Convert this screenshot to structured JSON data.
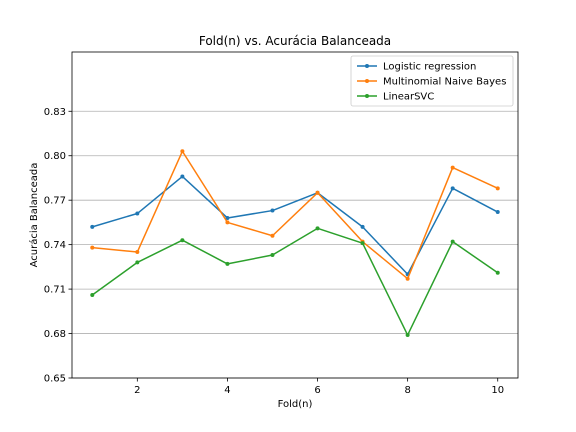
{
  "chart_data": {
    "type": "line",
    "title": "Fold(n) vs. Acurácia Balanceada",
    "xlabel": "Fold(n)",
    "ylabel": "Acurácia Balanceada",
    "x": [
      1,
      2,
      3,
      4,
      5,
      6,
      7,
      8,
      9,
      10
    ],
    "xlim": [
      0.55,
      10.45
    ],
    "ylim": [
      0.65,
      0.87
    ],
    "xticks": [
      2,
      4,
      6,
      8,
      10
    ],
    "yticks": [
      0.65,
      0.68,
      0.71,
      0.74,
      0.77,
      0.8,
      0.83
    ],
    "ytick_labels": [
      "0.65",
      "0.68",
      "0.71",
      "0.74",
      "0.77",
      "0.80",
      "0.83"
    ],
    "grid": "y-major",
    "legend_position": "top-right",
    "marker": "dot",
    "series": [
      {
        "name": "Logistic regression",
        "color": "#1f77b4",
        "values": [
          0.752,
          0.761,
          0.786,
          0.758,
          0.763,
          0.775,
          0.752,
          0.72,
          0.778,
          0.762
        ]
      },
      {
        "name": "Multinomial Naive Bayes",
        "color": "#ff7f0e",
        "values": [
          0.738,
          0.735,
          0.803,
          0.755,
          0.746,
          0.775,
          0.742,
          0.717,
          0.792,
          0.778
        ]
      },
      {
        "name": "LinearSVC",
        "color": "#2ca02c",
        "values": [
          0.706,
          0.728,
          0.743,
          0.727,
          0.733,
          0.751,
          0.741,
          0.679,
          0.742,
          0.721
        ]
      }
    ]
  }
}
